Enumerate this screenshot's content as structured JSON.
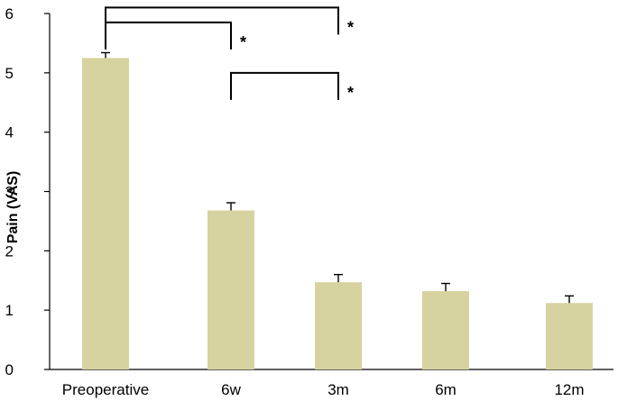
{
  "chart_data": {
    "type": "bar",
    "title": "",
    "xlabel": "",
    "ylabel": "Pain (VAS)",
    "ylim": [
      0,
      6
    ],
    "yticks": [
      0,
      1,
      2,
      3,
      4,
      5,
      6
    ],
    "categories": [
      "Preoperative",
      "6w",
      "3m",
      "6m",
      "12m"
    ],
    "values": [
      5.25,
      2.68,
      1.47,
      1.32,
      1.12
    ],
    "errors": [
      0.09,
      0.13,
      0.13,
      0.13,
      0.12
    ],
    "bar_color": "#d6d3a0",
    "grid": false,
    "legend": "none",
    "significance": [
      {
        "from": "Preoperative",
        "to": "6w",
        "label": "*",
        "y": 5.85
      },
      {
        "from": "Preoperative",
        "to": "3m",
        "label": "*",
        "y": 6.1
      },
      {
        "from": "6w",
        "to": "3m",
        "label": "*",
        "y": 5.0
      }
    ]
  }
}
